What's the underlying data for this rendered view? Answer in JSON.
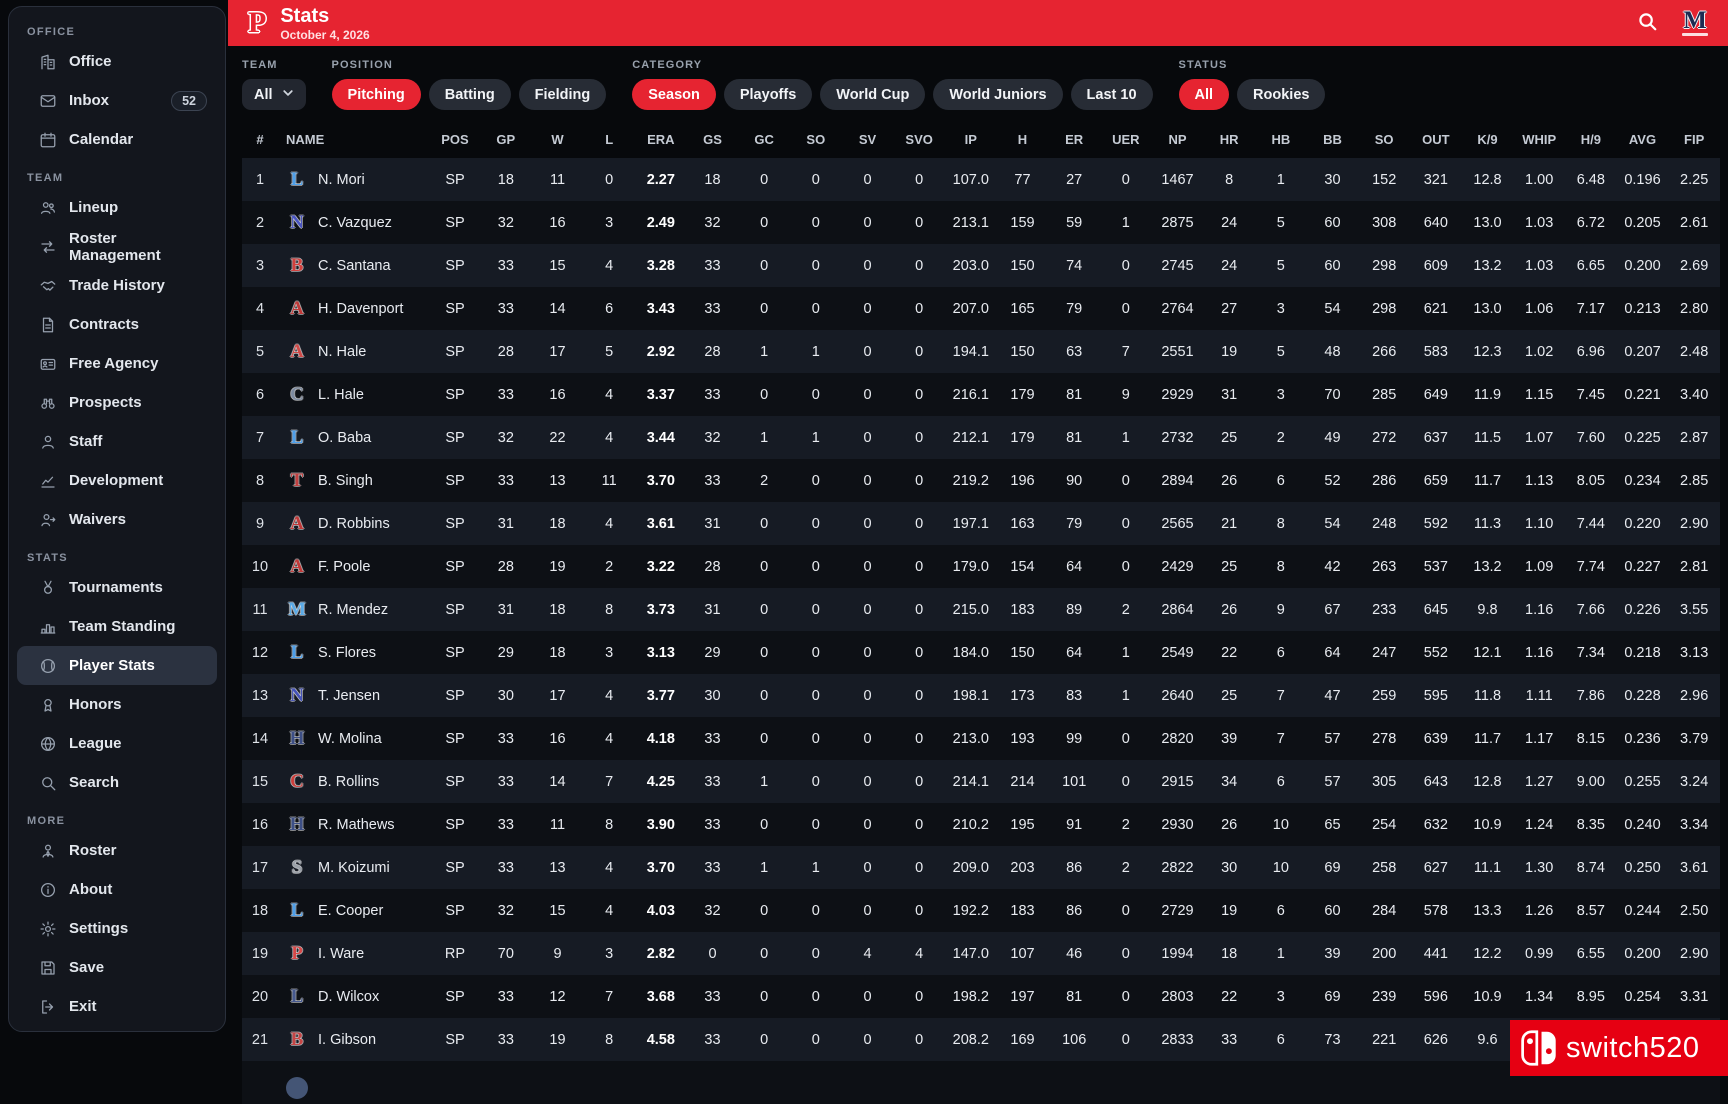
{
  "header": {
    "logo_letter": "P",
    "title": "Stats",
    "date": "October 4, 2026",
    "team_badge": "M"
  },
  "colors": {
    "accent_red": "#e62431",
    "watermark_red": "#e60012",
    "sidebar_bg": "#13161d",
    "row_light": "#161b24",
    "row_dark": "#0d1015"
  },
  "sidebar": {
    "sections": [
      {
        "label": "OFFICE",
        "items": [
          {
            "label": "Office",
            "icon": "building"
          },
          {
            "label": "Inbox",
            "icon": "mail",
            "badge": "52"
          },
          {
            "label": "Calendar",
            "icon": "calendar"
          }
        ]
      },
      {
        "label": "TEAM",
        "items": [
          {
            "label": "Lineup",
            "icon": "people"
          },
          {
            "label": "Roster Management",
            "icon": "swap"
          },
          {
            "label": "Trade History",
            "icon": "handshake"
          },
          {
            "label": "Contracts",
            "icon": "document"
          },
          {
            "label": "Free Agency",
            "icon": "id-card"
          },
          {
            "label": "Prospects",
            "icon": "binoculars"
          },
          {
            "label": "Staff",
            "icon": "person"
          },
          {
            "label": "Development",
            "icon": "chart-line"
          },
          {
            "label": "Waivers",
            "icon": "person-out"
          }
        ]
      },
      {
        "label": "STATS",
        "items": [
          {
            "label": "Tournaments",
            "icon": "medal"
          },
          {
            "label": "Team Standing",
            "icon": "podium"
          },
          {
            "label": "Player Stats",
            "icon": "baseball",
            "active": true
          },
          {
            "label": "Honors",
            "icon": "award"
          },
          {
            "label": "League",
            "icon": "globe"
          },
          {
            "label": "Search",
            "icon": "magnifier"
          }
        ]
      },
      {
        "label": "MORE",
        "items": [
          {
            "label": "Roster",
            "icon": "person-tie"
          },
          {
            "label": "About",
            "icon": "info"
          },
          {
            "label": "Settings",
            "icon": "gear"
          },
          {
            "label": "Save",
            "icon": "floppy"
          },
          {
            "label": "Exit",
            "icon": "logout"
          }
        ]
      }
    ]
  },
  "filters": [
    {
      "label": "TEAM",
      "type": "dropdown",
      "value": "All"
    },
    {
      "label": "POSITION",
      "type": "chips",
      "options": [
        "Pitching",
        "Batting",
        "Fielding"
      ],
      "active": "Pitching"
    },
    {
      "label": "CATEGORY",
      "type": "chips",
      "options": [
        "Season",
        "Playoffs",
        "World Cup",
        "World Juniors",
        "Last 10"
      ],
      "active": "Season"
    },
    {
      "label": "STATUS",
      "type": "chips",
      "options": [
        "All",
        "Rookies"
      ],
      "active": "All"
    }
  ],
  "table": {
    "columns": [
      "#",
      "NAME",
      "POS",
      "GP",
      "W",
      "L",
      "ERA",
      "GS",
      "GC",
      "SO",
      "SV",
      "SVO",
      "IP",
      "H",
      "ER",
      "UER",
      "NP",
      "HR",
      "HB",
      "BB",
      "SO",
      "OUT",
      "K/9",
      "WHIP",
      "H/9",
      "AVG",
      "FIP"
    ],
    "rows": [
      {
        "rank": 1,
        "logo": "L",
        "logo_color": "#4d9fea",
        "name": "N. Mori",
        "pos": "SP",
        "stats": [
          18,
          11,
          0,
          "2.27",
          18,
          0,
          0,
          0,
          0,
          "107.0",
          77,
          27,
          0,
          1467,
          8,
          1,
          30,
          152,
          321,
          "12.8",
          "1.00",
          "6.48",
          "0.196",
          "2.25"
        ]
      },
      {
        "rank": 2,
        "logo": "N",
        "logo_color": "#4a55c0",
        "name": "C. Vazquez",
        "pos": "SP",
        "stats": [
          32,
          16,
          3,
          "2.49",
          32,
          0,
          0,
          0,
          0,
          "213.1",
          159,
          59,
          1,
          2875,
          24,
          5,
          60,
          308,
          640,
          "13.0",
          "1.03",
          "6.72",
          "0.205",
          "2.61"
        ]
      },
      {
        "rank": 3,
        "logo": "B",
        "logo_color": "#d2413e",
        "name": "C. Santana",
        "pos": "SP",
        "stats": [
          33,
          15,
          4,
          "3.28",
          33,
          0,
          0,
          0,
          0,
          "203.0",
          150,
          74,
          0,
          2745,
          24,
          5,
          60,
          298,
          609,
          "13.2",
          "1.03",
          "6.65",
          "0.200",
          "2.69"
        ]
      },
      {
        "rank": 4,
        "logo": "A",
        "logo_color": "#c03938",
        "name": "H. Davenport",
        "pos": "SP",
        "stats": [
          33,
          14,
          6,
          "3.43",
          33,
          0,
          0,
          0,
          0,
          "207.0",
          165,
          79,
          0,
          2764,
          27,
          3,
          54,
          298,
          621,
          "13.0",
          "1.06",
          "7.17",
          "0.213",
          "2.80"
        ]
      },
      {
        "rank": 5,
        "logo": "A",
        "logo_color": "#d04a48",
        "name": "N. Hale",
        "pos": "SP",
        "stats": [
          28,
          17,
          5,
          "2.92",
          28,
          1,
          1,
          0,
          0,
          "194.1",
          150,
          63,
          7,
          2551,
          19,
          5,
          48,
          266,
          583,
          "12.3",
          "1.02",
          "6.96",
          "0.207",
          "2.48"
        ]
      },
      {
        "rank": 6,
        "logo": "C",
        "logo_color": "#7c8aa0",
        "name": "L. Hale",
        "pos": "SP",
        "stats": [
          33,
          16,
          4,
          "3.37",
          33,
          0,
          0,
          0,
          0,
          "216.1",
          179,
          81,
          9,
          2929,
          31,
          3,
          70,
          285,
          649,
          "11.9",
          "1.15",
          "7.45",
          "0.221",
          "3.40"
        ]
      },
      {
        "rank": 7,
        "logo": "L",
        "logo_color": "#4d9fea",
        "name": "O. Baba",
        "pos": "SP",
        "stats": [
          32,
          22,
          4,
          "3.44",
          32,
          1,
          1,
          0,
          0,
          "212.1",
          179,
          81,
          1,
          2732,
          25,
          2,
          49,
          272,
          637,
          "11.5",
          "1.07",
          "7.60",
          "0.225",
          "2.87"
        ]
      },
      {
        "rank": 8,
        "logo": "T",
        "logo_color": "#c24040",
        "name": "B. Singh",
        "pos": "SP",
        "stats": [
          33,
          13,
          11,
          "3.70",
          33,
          2,
          0,
          0,
          0,
          "219.2",
          196,
          90,
          0,
          2894,
          26,
          6,
          52,
          286,
          659,
          "11.7",
          "1.13",
          "8.05",
          "0.234",
          "2.85"
        ]
      },
      {
        "rank": 9,
        "logo": "A",
        "logo_color": "#c03938",
        "name": "D. Robbins",
        "pos": "SP",
        "stats": [
          31,
          18,
          4,
          "3.61",
          31,
          0,
          0,
          0,
          0,
          "197.1",
          163,
          79,
          0,
          2565,
          21,
          8,
          54,
          248,
          592,
          "11.3",
          "1.10",
          "7.44",
          "0.220",
          "2.90"
        ]
      },
      {
        "rank": 10,
        "logo": "A",
        "logo_color": "#c03938",
        "name": "F. Poole",
        "pos": "SP",
        "stats": [
          28,
          19,
          2,
          "3.22",
          28,
          0,
          0,
          0,
          0,
          "179.0",
          154,
          64,
          0,
          2429,
          25,
          8,
          42,
          263,
          537,
          "13.2",
          "1.09",
          "7.74",
          "0.227",
          "2.81"
        ]
      },
      {
        "rank": 11,
        "logo": "M",
        "logo_color": "#5aaae6",
        "name": "R. Mendez",
        "pos": "SP",
        "stats": [
          31,
          18,
          8,
          "3.73",
          31,
          0,
          0,
          0,
          0,
          "215.0",
          183,
          89,
          2,
          2864,
          26,
          9,
          67,
          233,
          645,
          "9.8",
          "1.16",
          "7.66",
          "0.226",
          "3.55"
        ]
      },
      {
        "rank": 12,
        "logo": "L",
        "logo_color": "#4d9fea",
        "name": "S. Flores",
        "pos": "SP",
        "stats": [
          29,
          18,
          3,
          "3.13",
          29,
          0,
          0,
          0,
          0,
          "184.0",
          150,
          64,
          1,
          2549,
          22,
          6,
          64,
          247,
          552,
          "12.1",
          "1.16",
          "7.34",
          "0.218",
          "3.13"
        ]
      },
      {
        "rank": 13,
        "logo": "N",
        "logo_color": "#4553b8",
        "name": "T. Jensen",
        "pos": "SP",
        "stats": [
          30,
          17,
          4,
          "3.77",
          30,
          0,
          0,
          0,
          0,
          "198.1",
          173,
          83,
          1,
          2640,
          25,
          7,
          47,
          259,
          595,
          "11.8",
          "1.11",
          "7.86",
          "0.228",
          "2.96"
        ]
      },
      {
        "rank": 14,
        "logo": "H",
        "logo_color": "#3d4f86",
        "name": "W. Molina",
        "pos": "SP",
        "stats": [
          33,
          16,
          4,
          "4.18",
          33,
          0,
          0,
          0,
          0,
          "213.0",
          193,
          99,
          0,
          2820,
          39,
          7,
          57,
          278,
          639,
          "11.7",
          "1.17",
          "8.15",
          "0.236",
          "3.79"
        ]
      },
      {
        "rank": 15,
        "logo": "C",
        "logo_color": "#cc3f3c",
        "name": "B. Rollins",
        "pos": "SP",
        "stats": [
          33,
          14,
          7,
          "4.25",
          33,
          1,
          0,
          0,
          0,
          "214.1",
          214,
          101,
          0,
          2915,
          34,
          6,
          57,
          305,
          643,
          "12.8",
          "1.27",
          "9.00",
          "0.255",
          "3.24"
        ]
      },
      {
        "rank": 16,
        "logo": "H",
        "logo_color": "#3d4f86",
        "name": "R. Mathews",
        "pos": "SP",
        "stats": [
          33,
          11,
          8,
          "3.90",
          33,
          0,
          0,
          0,
          0,
          "210.2",
          195,
          91,
          2,
          2930,
          26,
          10,
          65,
          254,
          632,
          "10.9",
          "1.24",
          "8.35",
          "0.240",
          "3.34"
        ]
      },
      {
        "rank": 17,
        "logo": "S",
        "logo_color": "#9aa0a8",
        "name": "M. Koizumi",
        "pos": "SP",
        "stats": [
          33,
          13,
          4,
          "3.70",
          33,
          1,
          1,
          0,
          0,
          "209.0",
          203,
          86,
          2,
          2822,
          30,
          10,
          69,
          258,
          627,
          "11.1",
          "1.30",
          "8.74",
          "0.250",
          "3.61"
        ]
      },
      {
        "rank": 18,
        "logo": "L",
        "logo_color": "#4d9fea",
        "name": "E. Cooper",
        "pos": "SP",
        "stats": [
          32,
          15,
          4,
          "4.03",
          32,
          0,
          0,
          0,
          0,
          "192.2",
          183,
          86,
          0,
          2729,
          19,
          6,
          60,
          284,
          578,
          "13.3",
          "1.26",
          "8.57",
          "0.244",
          "2.50"
        ]
      },
      {
        "rank": 19,
        "logo": "P",
        "logo_color": "#d64848",
        "name": "I. Ware",
        "pos": "RP",
        "stats": [
          70,
          9,
          3,
          "2.82",
          0,
          0,
          0,
          4,
          4,
          "147.0",
          107,
          46,
          0,
          1994,
          18,
          1,
          39,
          200,
          441,
          "12.2",
          "0.99",
          "6.55",
          "0.200",
          "2.90"
        ]
      },
      {
        "rank": 20,
        "logo": "L",
        "logo_color": "#46598f",
        "name": "D. Wilcox",
        "pos": "SP",
        "stats": [
          33,
          12,
          7,
          "3.68",
          33,
          0,
          0,
          0,
          0,
          "198.2",
          197,
          81,
          0,
          2803,
          22,
          3,
          69,
          239,
          596,
          "10.9",
          "1.34",
          "8.95",
          "0.254",
          "3.31"
        ]
      },
      {
        "rank": 21,
        "logo": "B",
        "logo_color": "#c64545",
        "name": "I. Gibson",
        "pos": "SP",
        "stats": [
          33,
          19,
          8,
          "4.58",
          33,
          0,
          0,
          0,
          0,
          "208.2",
          169,
          106,
          0,
          2833,
          33,
          6,
          73,
          221,
          626,
          "9.6",
          "",
          "",
          "",
          ""
        ]
      }
    ],
    "partial_next_row": {
      "visible": true,
      "logo_color": "#4a5d80"
    }
  },
  "watermark": {
    "text": "switch520"
  }
}
